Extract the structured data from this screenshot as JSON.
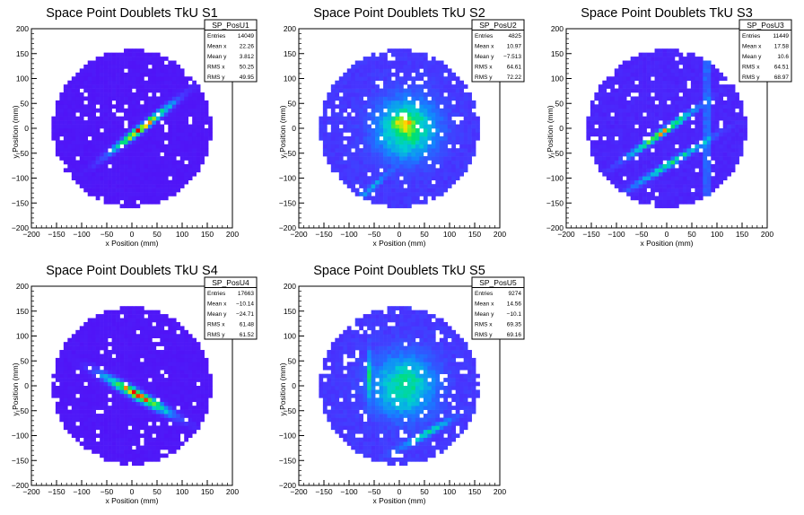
{
  "chart_data": [
    {
      "type": "heatmap",
      "title": "Space Point Doublets TkU S1",
      "xlabel": "x Position (mm)",
      "ylabel": "y Position (mm)",
      "xlim": [
        -200,
        200
      ],
      "ylim": [
        -200,
        200
      ],
      "xticks": [
        "−200",
        "−150",
        "−100",
        "−50",
        "0",
        "50",
        "100",
        "150",
        "200"
      ],
      "yticks": [
        "−200",
        "−150",
        "−100",
        "−50",
        "0",
        "50",
        "100",
        "150",
        "200"
      ],
      "stats": {
        "name": "SP_PosU1",
        "rows": [
          [
            "Entries",
            "14049"
          ],
          [
            "Mean x",
            "22.26"
          ],
          [
            "Mean y",
            "3.812"
          ],
          [
            "RMS x",
            "50.25"
          ],
          [
            "RMS y",
            "49.95"
          ]
        ]
      },
      "pattern": "diag-up"
    },
    {
      "type": "heatmap",
      "title": "Space Point Doublets TkU S2",
      "xlabel": "x Position (mm)",
      "ylabel": "y Position (mm)",
      "xlim": [
        -200,
        200
      ],
      "ylim": [
        -200,
        200
      ],
      "xticks": [
        "−200",
        "−150",
        "−100",
        "−50",
        "0",
        "50",
        "100",
        "150",
        "200"
      ],
      "yticks": [
        "−200",
        "−150",
        "−100",
        "−50",
        "0",
        "50",
        "100",
        "150",
        "200"
      ],
      "stats": {
        "name": "SP_PosU2",
        "rows": [
          [
            "Entries",
            "4825"
          ],
          [
            "Mean x",
            "10.97"
          ],
          [
            "Mean y",
            "−7.513"
          ],
          [
            "RMS x",
            "64.61"
          ],
          [
            "RMS y",
            "72.22"
          ]
        ]
      },
      "pattern": "blob"
    },
    {
      "type": "heatmap",
      "title": "Space Point Doublets TkU S3",
      "xlabel": "x Position (mm)",
      "ylabel": "y Position (mm)",
      "xlim": [
        -200,
        200
      ],
      "ylim": [
        -200,
        200
      ],
      "xticks": [
        "−200",
        "−150",
        "−100",
        "−50",
        "0",
        "50",
        "100",
        "150",
        "200"
      ],
      "yticks": [
        "−200",
        "−150",
        "−100",
        "−50",
        "0",
        "50",
        "100",
        "150",
        "200"
      ],
      "stats": {
        "name": "SP_PosU3",
        "rows": [
          [
            "Entries",
            "11449"
          ],
          [
            "Mean x",
            "17.58"
          ],
          [
            "Mean y",
            "10.6"
          ],
          [
            "RMS x",
            "64.51"
          ],
          [
            "RMS y",
            "68.97"
          ]
        ]
      },
      "pattern": "lines"
    },
    {
      "type": "heatmap",
      "title": "Space Point Doublets TkU S4",
      "xlabel": "x Position (mm)",
      "ylabel": "y Position (mm)",
      "xlim": [
        -200,
        200
      ],
      "ylim": [
        -200,
        200
      ],
      "xticks": [
        "−200",
        "−150",
        "−100",
        "−50",
        "0",
        "50",
        "100",
        "150",
        "200"
      ],
      "yticks": [
        "−200",
        "−150",
        "−100",
        "−50",
        "0",
        "50",
        "100",
        "150",
        "200"
      ],
      "stats": {
        "name": "SP_PosU4",
        "rows": [
          [
            "Entries",
            "17663"
          ],
          [
            "Mean x",
            "−10.14"
          ],
          [
            "Mean y",
            "−24.71"
          ],
          [
            "RMS x",
            "61.48"
          ],
          [
            "RMS y",
            "61.52"
          ]
        ]
      },
      "pattern": "diag-down"
    },
    {
      "type": "heatmap",
      "title": "Space Point Doublets TkU S5",
      "xlabel": "x Position (mm)",
      "ylabel": "y Position (mm)",
      "xlim": [
        -200,
        200
      ],
      "ylim": [
        -200,
        200
      ],
      "xticks": [
        "−200",
        "−150",
        "−100",
        "−50",
        "0",
        "50",
        "100",
        "150",
        "200"
      ],
      "yticks": [
        "−200",
        "−150",
        "−100",
        "−50",
        "0",
        "50",
        "100",
        "150",
        "200"
      ],
      "stats": {
        "name": "SP_PosU5",
        "rows": [
          [
            "Entries",
            "9274"
          ],
          [
            "Mean x",
            "14.56"
          ],
          [
            "Mean y",
            "−10.1"
          ],
          [
            "RMS x",
            "69.35"
          ],
          [
            "RMS y",
            "69.16"
          ]
        ]
      },
      "pattern": "mixed"
    }
  ]
}
